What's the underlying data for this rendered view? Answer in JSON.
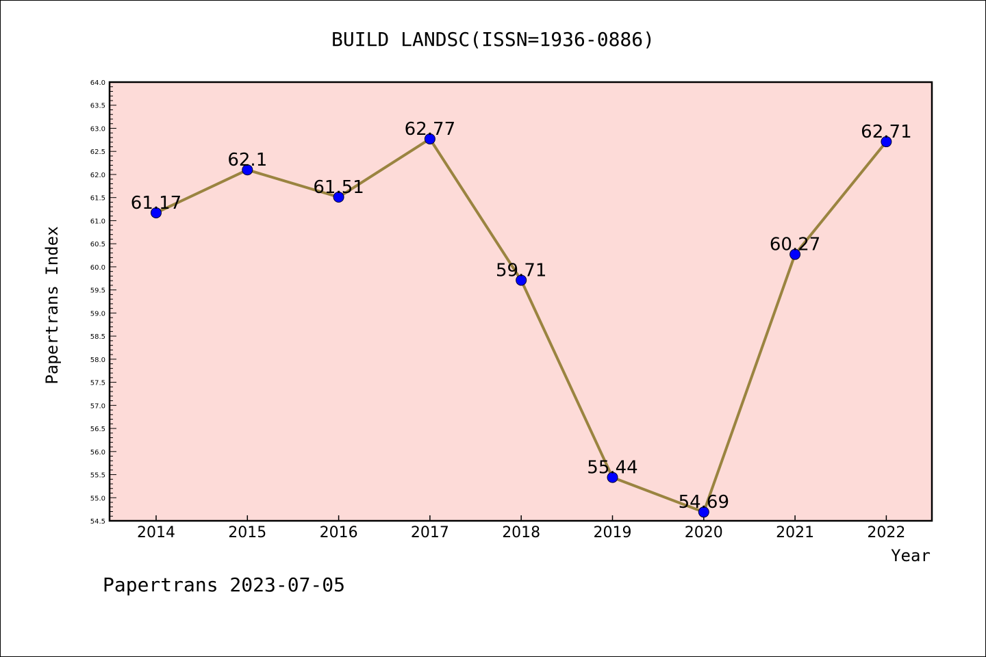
{
  "chart_data": {
    "type": "line",
    "title": "BUILD LANDSC(ISSN=1936-0886)",
    "xlabel": "Year",
    "ylabel": "Papertrans Index",
    "categories": [
      "2014",
      "2015",
      "2016",
      "2017",
      "2018",
      "2019",
      "2020",
      "2021",
      "2022"
    ],
    "values": [
      61.17,
      62.1,
      61.51,
      62.77,
      59.71,
      55.44,
      54.69,
      60.27,
      62.71
    ],
    "data_labels": [
      "61.17",
      "62.1",
      "61.51",
      "62.77",
      "59.71",
      "55.44",
      "54.69",
      "60.27",
      "62.71"
    ],
    "ylim": [
      54.5,
      64.0
    ],
    "yticks": [
      "54.5",
      "55.0",
      "55.5",
      "56.0",
      "56.5",
      "57.0",
      "57.5",
      "58.0",
      "58.5",
      "59.0",
      "59.5",
      "60.0",
      "60.5",
      "61.0",
      "61.5",
      "62.0",
      "62.5",
      "63.0",
      "63.5",
      "64.0"
    ],
    "grid": false,
    "colors": {
      "plot_bg": "#fddbd8",
      "line": "#9a8440",
      "marker": "#0000ff"
    }
  },
  "footer": {
    "text": "Papertrans 2023-07-05"
  }
}
